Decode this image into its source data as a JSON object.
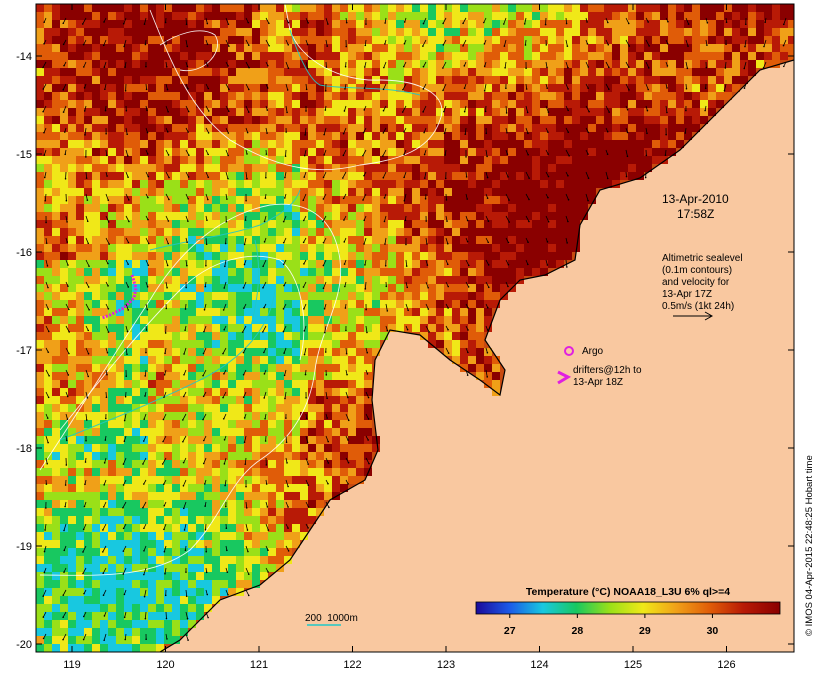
{
  "map": {
    "axes": {
      "y_ticks": [
        "-14",
        "-15",
        "-16",
        "-17",
        "-18",
        "-19",
        "-20"
      ],
      "x_ticks": [
        "119",
        "120",
        "121",
        "122",
        "123",
        "124",
        "125",
        "126"
      ]
    },
    "annotations": {
      "date": "13-Apr-2010",
      "time": "17:58Z",
      "altimetry": [
        "Altimetric sealevel",
        "(0.1m contours)",
        "and velocity for",
        "13-Apr 17Z",
        "0.5m/s (1kt 24h)"
      ],
      "argo_label": "Argo",
      "drifters": [
        "drifters@12h to",
        "13-Apr 18Z"
      ]
    },
    "bathymetry_legend": "200  1000m",
    "colorbar": {
      "title": "Temperature (°C) NOAA18_L3U 6% ql>=4",
      "ticks": [
        "27",
        "28",
        "29",
        "30"
      ],
      "range": [
        26.5,
        31
      ]
    },
    "credit": "© IMOS 04-Apr-2015 22:48:25 Hobart time",
    "colors": {
      "land": "#f9c8a0",
      "sst_scale": [
        "#1a0a9a",
        "#1c5ae8",
        "#18c8e0",
        "#18c860",
        "#9ae018",
        "#f0e818",
        "#f0a018",
        "#e05c08",
        "#b81a06",
        "#8a0000"
      ],
      "argo": "#e020e0",
      "drifter": "#e020e0",
      "bathymetry": "#20c8c8"
    }
  }
}
